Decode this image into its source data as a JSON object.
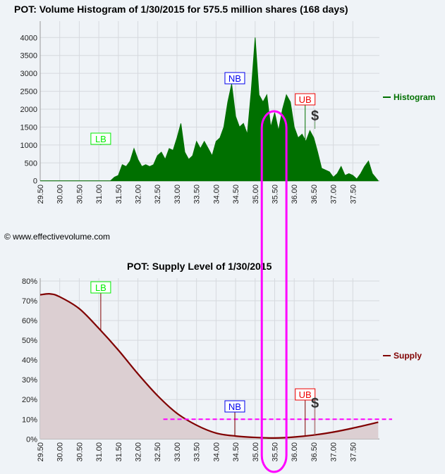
{
  "watermark": "© www.effectivevolume.com",
  "chart_data": [
    {
      "type": "area",
      "title": "POT: Volume Histogram of 1/30/2015 for 575.5 million shares (168 days)",
      "legend": "Histogram",
      "legend_placement": "right",
      "color": "#007000",
      "xlim": [
        29.5,
        38.18
      ],
      "ylim": [
        0,
        4300
      ],
      "xticks": [
        "29.50",
        "30.00",
        "30.50",
        "31.00",
        "31.50",
        "32.00",
        "32.50",
        "33.00",
        "33.50",
        "34.00",
        "34.50",
        "35.00",
        "35.50",
        "36.00",
        "36.50",
        "37.00",
        "37.50"
      ],
      "yticks": [
        "0",
        "500",
        "1000",
        "1500",
        "2000",
        "2500",
        "3000",
        "3500",
        "4000"
      ],
      "x": [
        29.5,
        31.3,
        31.4,
        31.5,
        31.6,
        31.7,
        31.8,
        31.9,
        32.0,
        32.1,
        32.2,
        32.3,
        32.4,
        32.5,
        32.6,
        32.7,
        32.8,
        32.9,
        33.0,
        33.1,
        33.2,
        33.3,
        33.4,
        33.5,
        33.6,
        33.7,
        33.8,
        33.9,
        34.0,
        34.1,
        34.2,
        34.3,
        34.4,
        34.5,
        34.6,
        34.7,
        34.8,
        34.9,
        35.0,
        35.1,
        35.2,
        35.3,
        35.4,
        35.5,
        35.6,
        35.7,
        35.8,
        35.9,
        36.0,
        36.1,
        36.2,
        36.3,
        36.4,
        36.5,
        36.6,
        36.7,
        36.8,
        36.9,
        37.0,
        37.1,
        37.2,
        37.3,
        37.4,
        37.5,
        37.6,
        37.7,
        37.8,
        37.9,
        38.0,
        38.15
      ],
      "y": [
        0,
        0,
        100,
        150,
        450,
        400,
        550,
        900,
        600,
        400,
        450,
        400,
        450,
        700,
        800,
        600,
        900,
        850,
        1200,
        1600,
        800,
        600,
        700,
        1100,
        900,
        1100,
        900,
        700,
        1100,
        1200,
        1500,
        2200,
        2700,
        1800,
        1500,
        1600,
        1300,
        2500,
        4000,
        2400,
        2200,
        2400,
        1500,
        1900,
        1400,
        2000,
        2400,
        2200,
        1500,
        1200,
        1300,
        1100,
        1400,
        1200,
        800,
        350,
        300,
        250,
        100,
        200,
        400,
        150,
        200,
        150,
        50,
        200,
        400,
        550,
        200,
        0
      ],
      "markers": [
        {
          "label": "LB",
          "x": 31.05,
          "y": 1000,
          "color": "#00ee00"
        },
        {
          "label": "NB",
          "x": 34.48,
          "y": 2700,
          "color": "#0000ee"
        },
        {
          "label": "UB",
          "x": 36.28,
          "y": 1150,
          "color": "#ee0000"
        },
        {
          "label": "$",
          "x": 36.53,
          "y": 1450,
          "color": "#333333"
        }
      ]
    },
    {
      "type": "area",
      "title": "POT: Supply Level of 1/30/2015",
      "legend": "Supply",
      "legend_placement": "right",
      "color": "#800000",
      "xlim": [
        29.5,
        38.18
      ],
      "ylim": [
        0,
        80
      ],
      "xticks": [
        "29.50",
        "30.00",
        "30.50",
        "31.00",
        "31.50",
        "32.00",
        "32.50",
        "33.00",
        "33.50",
        "34.00",
        "34.50",
        "35.00",
        "35.50",
        "36.00",
        "36.50",
        "37.00",
        "37.50"
      ],
      "yticks": [
        "0%",
        "10%",
        "20%",
        "30%",
        "40%",
        "50%",
        "60%",
        "70%",
        "80%"
      ],
      "x": [
        29.5,
        29.75,
        30.0,
        30.5,
        31.0,
        31.5,
        32.0,
        32.5,
        33.0,
        33.5,
        34.0,
        34.5,
        35.0,
        35.5,
        36.0,
        36.5,
        37.0,
        37.5,
        38.15
      ],
      "y": [
        73,
        73.5,
        72,
        66,
        56,
        45,
        33,
        22,
        13,
        7,
        3,
        1.5,
        0.8,
        0.5,
        1,
        2,
        3.5,
        5.5,
        8.5
      ],
      "threshold": {
        "y": 10,
        "x_start": 32.65,
        "color": "#ff00ff"
      },
      "markers": [
        {
          "label": "LB",
          "x": 31.05,
          "y": 55,
          "color": "#00ee00"
        },
        {
          "label": "NB",
          "x": 34.48,
          "y": 1.5,
          "color": "#0000ee"
        },
        {
          "label": "UB",
          "x": 36.28,
          "y": 1.3,
          "color": "#ee0000"
        },
        {
          "label": "$",
          "x": 36.53,
          "y": 2,
          "color": "#333333"
        }
      ]
    }
  ],
  "highlight": {
    "x_from": 35.17,
    "x_to": 35.8,
    "color": "#ff00ff"
  }
}
